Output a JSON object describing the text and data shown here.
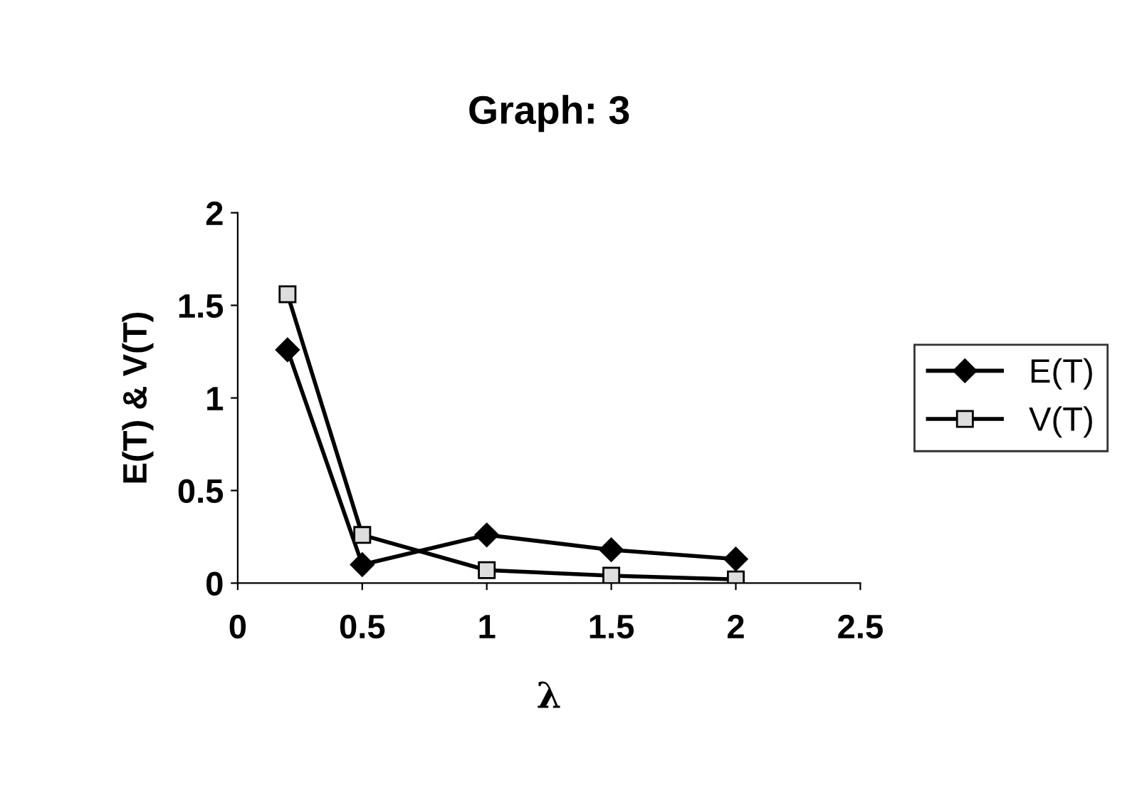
{
  "chart_data": {
    "type": "line",
    "title": "Graph: 3",
    "xlabel": "λ",
    "ylabel": "E(T) & V(T)",
    "x": [
      0.2,
      0.5,
      1,
      1.5,
      2
    ],
    "series": [
      {
        "name": "E(T)",
        "color": "#000000",
        "marker": "diamond",
        "values": [
          1.26,
          0.1,
          0.26,
          0.18,
          0.13
        ]
      },
      {
        "name": "V(T)",
        "color": "#000000",
        "marker": "square",
        "values": [
          1.56,
          0.26,
          0.07,
          0.04,
          0.02
        ]
      }
    ],
    "xlim": [
      0,
      2.5
    ],
    "xticks": [
      0,
      0.5,
      1,
      1.5,
      2,
      2.5
    ],
    "ylim": [
      0,
      2
    ],
    "yticks": [
      0,
      0.5,
      1,
      1.5,
      2
    ],
    "grid": false,
    "legend": "right",
    "line_style": "solid"
  }
}
